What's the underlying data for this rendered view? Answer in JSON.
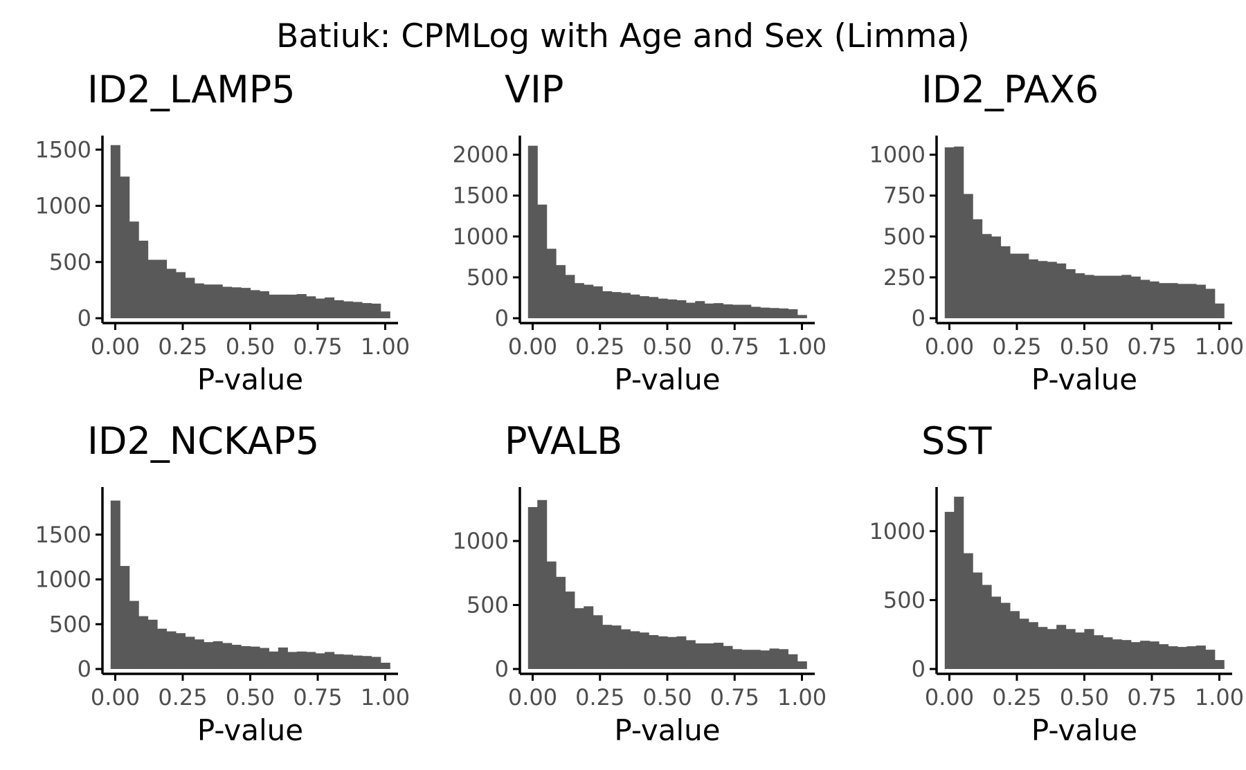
{
  "title": "Batiuk: CPMLog with Age and Sex (Limma)",
  "colors": {
    "bar": "#595959",
    "axis": "#000000",
    "tick_text": "#4d4d4d"
  },
  "chart_data": [
    {
      "type": "bar",
      "title": "ID2_LAMP5",
      "xlabel": "P-value",
      "ylabel": "",
      "xlim": [
        -0.0167,
        1.0167
      ],
      "ylim": [
        0,
        1600
      ],
      "xticks": [
        0,
        0.25,
        0.5,
        0.75,
        1
      ],
      "xtick_labels": [
        "0.00",
        "0.25",
        "0.50",
        "0.75",
        "1.00"
      ],
      "yticks": [
        0,
        500,
        1000,
        1500
      ],
      "ytick_labels": [
        "0",
        "500",
        "1000",
        "1500"
      ],
      "x": [
        0,
        0.0345,
        0.069,
        0.1034,
        0.1379,
        0.1724,
        0.2069,
        0.2414,
        0.2759,
        0.3103,
        0.3448,
        0.3793,
        0.4138,
        0.4483,
        0.4828,
        0.5172,
        0.5517,
        0.5862,
        0.6207,
        0.6552,
        0.6897,
        0.7241,
        0.7586,
        0.7931,
        0.8276,
        0.8621,
        0.8966,
        0.931,
        0.9655,
        1
      ],
      "values": [
        1540,
        1260,
        860,
        690,
        520,
        520,
        440,
        410,
        360,
        310,
        300,
        300,
        280,
        275,
        270,
        250,
        240,
        210,
        210,
        210,
        215,
        195,
        175,
        185,
        160,
        150,
        145,
        135,
        130,
        60
      ]
    },
    {
      "type": "bar",
      "title": "VIP",
      "xlabel": "P-value",
      "ylabel": "",
      "xlim": [
        -0.0167,
        1.0167
      ],
      "ylim": [
        0,
        2200
      ],
      "xticks": [
        0,
        0.25,
        0.5,
        0.75,
        1
      ],
      "xtick_labels": [
        "0.00",
        "0.25",
        "0.50",
        "0.75",
        "1.00"
      ],
      "yticks": [
        0,
        500,
        1000,
        1500,
        2000
      ],
      "ytick_labels": [
        "0",
        "500",
        "1000",
        "1500",
        "2000"
      ],
      "x": [
        0,
        0.0345,
        0.069,
        0.1034,
        0.1379,
        0.1724,
        0.2069,
        0.2414,
        0.2759,
        0.3103,
        0.3448,
        0.3793,
        0.4138,
        0.4483,
        0.4828,
        0.5172,
        0.5517,
        0.5862,
        0.6207,
        0.6552,
        0.6897,
        0.7241,
        0.7586,
        0.7931,
        0.8276,
        0.8621,
        0.8966,
        0.931,
        0.9655,
        1
      ],
      "values": [
        2110,
        1390,
        850,
        650,
        530,
        430,
        410,
        390,
        330,
        320,
        310,
        290,
        270,
        260,
        240,
        230,
        220,
        190,
        210,
        180,
        185,
        170,
        165,
        165,
        140,
        130,
        125,
        120,
        110,
        40
      ]
    },
    {
      "type": "bar",
      "title": "ID2_PAX6",
      "xlabel": "P-value",
      "ylabel": "",
      "xlim": [
        -0.0167,
        1.0167
      ],
      "ylim": [
        0,
        1100
      ],
      "xticks": [
        0,
        0.25,
        0.5,
        0.75,
        1
      ],
      "xtick_labels": [
        "0.00",
        "0.25",
        "0.50",
        "0.75",
        "1.00"
      ],
      "yticks": [
        0,
        250,
        500,
        750,
        1000
      ],
      "ytick_labels": [
        "0",
        "250",
        "500",
        "750",
        "1000"
      ],
      "x": [
        0,
        0.0345,
        0.069,
        0.1034,
        0.1379,
        0.1724,
        0.2069,
        0.2414,
        0.2759,
        0.3103,
        0.3448,
        0.3793,
        0.4138,
        0.4483,
        0.4828,
        0.5172,
        0.5517,
        0.5862,
        0.6207,
        0.6552,
        0.6897,
        0.7241,
        0.7586,
        0.7931,
        0.8276,
        0.8621,
        0.8966,
        0.931,
        0.9655,
        1
      ],
      "values": [
        1045,
        1050,
        760,
        605,
        515,
        500,
        440,
        395,
        395,
        360,
        350,
        345,
        335,
        300,
        275,
        265,
        260,
        260,
        260,
        265,
        255,
        235,
        225,
        215,
        215,
        210,
        210,
        205,
        180,
        90
      ]
    },
    {
      "type": "bar",
      "title": "ID2_NCKAP5",
      "xlabel": "P-value",
      "ylabel": "",
      "xlim": [
        -0.0167,
        1.0167
      ],
      "ylim": [
        0,
        2000
      ],
      "xticks": [
        0,
        0.25,
        0.5,
        0.75,
        1
      ],
      "xtick_labels": [
        "0.00",
        "0.25",
        "0.50",
        "0.75",
        "1.00"
      ],
      "yticks": [
        0,
        500,
        1000,
        1500
      ],
      "ytick_labels": [
        "0",
        "500",
        "1000",
        "1500"
      ],
      "x": [
        0,
        0.0345,
        0.069,
        0.1034,
        0.1379,
        0.1724,
        0.2069,
        0.2414,
        0.2759,
        0.3103,
        0.3448,
        0.3793,
        0.4138,
        0.4483,
        0.4828,
        0.5172,
        0.5517,
        0.5862,
        0.6207,
        0.6552,
        0.6897,
        0.7241,
        0.7586,
        0.7931,
        0.8276,
        0.8621,
        0.8966,
        0.931,
        0.9655,
        1
      ],
      "values": [
        1880,
        1150,
        760,
        590,
        550,
        450,
        420,
        400,
        360,
        330,
        300,
        310,
        290,
        270,
        255,
        250,
        235,
        195,
        240,
        190,
        195,
        190,
        175,
        190,
        165,
        160,
        150,
        145,
        135,
        70
      ]
    },
    {
      "type": "bar",
      "title": "PVALB",
      "xlabel": "P-value",
      "ylabel": "",
      "xlim": [
        -0.0167,
        1.0167
      ],
      "ylim": [
        0,
        1400
      ],
      "xticks": [
        0,
        0.25,
        0.5,
        0.75,
        1
      ],
      "xtick_labels": [
        "0.00",
        "0.25",
        "0.50",
        "0.75",
        "1.00"
      ],
      "yticks": [
        0,
        500,
        1000
      ],
      "ytick_labels": [
        "0",
        "500",
        "1000"
      ],
      "x": [
        0,
        0.0345,
        0.069,
        0.1034,
        0.1379,
        0.1724,
        0.2069,
        0.2414,
        0.2759,
        0.3103,
        0.3448,
        0.3793,
        0.4138,
        0.4483,
        0.4828,
        0.5172,
        0.5517,
        0.5862,
        0.6207,
        0.6552,
        0.6897,
        0.7241,
        0.7586,
        0.7931,
        0.8276,
        0.8621,
        0.8966,
        0.931,
        0.9655,
        1
      ],
      "values": [
        1265,
        1320,
        840,
        720,
        605,
        475,
        490,
        420,
        345,
        340,
        310,
        295,
        285,
        265,
        255,
        250,
        255,
        225,
        200,
        200,
        205,
        180,
        155,
        150,
        150,
        145,
        160,
        155,
        115,
        60
      ]
    },
    {
      "type": "bar",
      "title": "SST",
      "xlabel": "P-value",
      "ylabel": "",
      "xlim": [
        -0.0167,
        1.0167
      ],
      "ylim": [
        0,
        1300
      ],
      "xticks": [
        0,
        0.25,
        0.5,
        0.75,
        1
      ],
      "xtick_labels": [
        "0.00",
        "0.25",
        "0.50",
        "0.75",
        "1.00"
      ],
      "yticks": [
        0,
        500,
        1000
      ],
      "ytick_labels": [
        "0",
        "500",
        "1000"
      ],
      "x": [
        0,
        0.0345,
        0.069,
        0.1034,
        0.1379,
        0.1724,
        0.2069,
        0.2414,
        0.2759,
        0.3103,
        0.3448,
        0.3793,
        0.4138,
        0.4483,
        0.4828,
        0.5172,
        0.5517,
        0.5862,
        0.6207,
        0.6552,
        0.6897,
        0.7241,
        0.7586,
        0.7931,
        0.8276,
        0.8621,
        0.8966,
        0.931,
        0.9655,
        1
      ],
      "values": [
        1140,
        1250,
        840,
        700,
        610,
        525,
        480,
        420,
        365,
        340,
        305,
        290,
        320,
        290,
        265,
        290,
        245,
        230,
        215,
        210,
        195,
        205,
        200,
        180,
        165,
        160,
        165,
        170,
        140,
        65
      ]
    }
  ]
}
